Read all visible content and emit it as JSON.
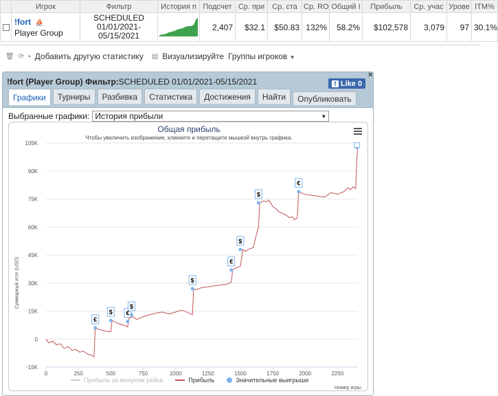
{
  "stats": {
    "columns": [
      "",
      "Игрок",
      "Фильтр",
      "История п",
      "Подсчет",
      "Ср. при",
      "Ср. ста",
      "Ср. RO",
      "Общий I",
      "Прибыль",
      "Ср. учас",
      "Урове",
      "ITM%"
    ],
    "row": {
      "player_name": "!fort",
      "player_group": "Player Group",
      "filter_line1": "SCHEDULED",
      "filter_line2": "01/01/2021-",
      "filter_line3": "05/15/2021",
      "count": "2,407",
      "avg_profit": "$32.1",
      "avg_stake": "$50.83",
      "avg_roi": "132%",
      "total_roi": "58.2%",
      "profit": "$102,578",
      "avg_entrants": "3,079",
      "level": "97",
      "itm": "30.1%"
    }
  },
  "toolbar": {
    "add_stat": "Добавить другую статистику",
    "visualize": "Визуализируйте",
    "player_groups": "Группы игроков"
  },
  "dialog": {
    "title_bold": "!fort (Player Group) Фильтр:",
    "title_rest": "SCHEDULED 01/01/2021-05/15/2021",
    "like_label": "Like 0",
    "close": "×",
    "tabs": [
      "Графики",
      "Турниры",
      "Разбивка",
      "Статистика",
      "Достижения",
      "Найти",
      "Опубликовать"
    ],
    "graph_label": "Выбранные графики:",
    "graph_selected": "История прибыли"
  },
  "chart_data": {
    "type": "line",
    "title": "Общая прибыль",
    "subtitle": "Чтобы увеличить изображение, кликните и перетащите мышкой внутрь графика.",
    "xlabel": "Номер игры",
    "ylabel": "Суммарный итог (USD)",
    "xlim": [
      0,
      2407
    ],
    "ylim": [
      -15000,
      105000
    ],
    "xticks": [
      "0",
      "250",
      "500",
      "750",
      "1000",
      "1250",
      "1500",
      "1750",
      "2000",
      "2250"
    ],
    "yticks": [
      "-15K",
      "0",
      "15K",
      "30K",
      "45K",
      "60K",
      "75K",
      "90K",
      "105K"
    ],
    "legend": [
      "Прибыль за минусом рейка",
      "Прибыль",
      "Значительные выигрыши"
    ],
    "series": [
      {
        "name": "Прибыль",
        "color": "#c4525a",
        "x": [
          0,
          20,
          50,
          80,
          110,
          140,
          170,
          200,
          230,
          260,
          290,
          320,
          350,
          370,
          380,
          390,
          420,
          450,
          480,
          500,
          510,
          540,
          570,
          600,
          630,
          640,
          670,
          700,
          750,
          800,
          850,
          900,
          950,
          1000,
          1050,
          1100,
          1130,
          1140,
          1160,
          1200,
          1250,
          1300,
          1350,
          1400,
          1430,
          1440,
          1460,
          1500,
          1520,
          1540,
          1560,
          1600,
          1620,
          1640,
          1650,
          1680,
          1700,
          1720,
          1750,
          1780,
          1800,
          1820,
          1850,
          1880,
          1900,
          1920,
          1940,
          1950,
          1960,
          1980,
          2000,
          2050,
          2100,
          2150,
          2200,
          2250,
          2300,
          2330,
          2350,
          2370,
          2390,
          2400,
          2407
        ],
        "y": [
          0,
          -2000,
          -1000,
          -3000,
          -2500,
          -5000,
          -4000,
          -6000,
          -5500,
          -7000,
          -6500,
          -8000,
          -8500,
          -9500,
          6000,
          5500,
          5000,
          4500,
          4000,
          4000,
          10000,
          9000,
          8000,
          7500,
          6500,
          11000,
          12000,
          10500,
          12000,
          13000,
          14000,
          14500,
          13500,
          14500,
          15500,
          14000,
          13000,
          27000,
          26500,
          27500,
          28000,
          28500,
          29000,
          29500,
          30500,
          37000,
          38000,
          39000,
          48000,
          47000,
          48000,
          49000,
          55000,
          60000,
          73000,
          74000,
          73500,
          74500,
          71000,
          69500,
          68000,
          67500,
          66500,
          65000,
          65500,
          64000,
          65000,
          79000,
          78500,
          78000,
          77500,
          77000,
          76500,
          76000,
          78500,
          77500,
          79000,
          81000,
          80000,
          81500,
          80500,
          98000,
          102578
        ]
      }
    ],
    "big_wins": [
      {
        "x": 380,
        "y": 6000,
        "currency": "€"
      },
      {
        "x": 500,
        "y": 10000,
        "currency": "$"
      },
      {
        "x": 630,
        "y": 9500,
        "currency": "€"
      },
      {
        "x": 660,
        "y": 13000,
        "currency": "$"
      },
      {
        "x": 1130,
        "y": 27000,
        "currency": "$"
      },
      {
        "x": 1430,
        "y": 37000,
        "currency": "€"
      },
      {
        "x": 1500,
        "y": 48000,
        "currency": "$"
      },
      {
        "x": 1640,
        "y": 73000,
        "currency": "$"
      },
      {
        "x": 1950,
        "y": 79000,
        "currency": "€"
      },
      {
        "x": 2400,
        "y": 102578,
        "currency": ""
      }
    ]
  },
  "colors": {
    "profit_line": "#c4525a",
    "rake_line": "#cccccc",
    "big_win": "#7cb5ec",
    "header_bg": "#b5c9d6",
    "link": "#1a5fb4"
  }
}
